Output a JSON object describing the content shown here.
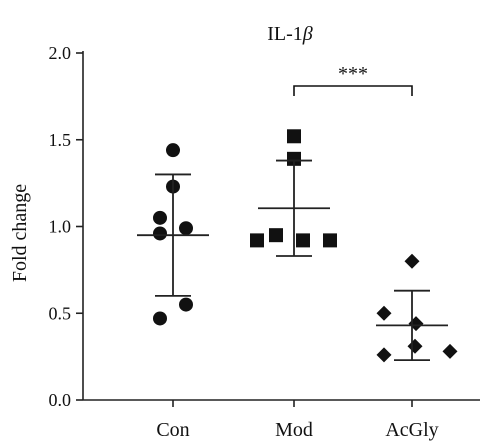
{
  "chart_data": {
    "type": "scatter",
    "title": "IL-1",
    "title_symbol": "β",
    "xlabel": "",
    "ylabel": "Fold change",
    "ylim": [
      0,
      2.0
    ],
    "y_ticks": [
      "0.0",
      "0.5",
      "1.0",
      "1.5",
      "2.0"
    ],
    "categories": [
      "Con",
      "Mod",
      "AcGly"
    ],
    "groups": [
      {
        "category": "Con",
        "marker": "circle",
        "points": [
          1.44,
          1.23,
          1.05,
          0.99,
          0.96,
          0.55,
          0.47
        ],
        "mean": 0.95,
        "sd_upper": 1.3,
        "sd_lower": 0.6
      },
      {
        "category": "Mod",
        "marker": "square",
        "points": [
          1.52,
          1.39,
          0.95,
          0.92,
          0.92,
          0.92
        ],
        "mean": 1.105,
        "sd_upper": 1.38,
        "sd_lower": 0.83
      },
      {
        "category": "AcGly",
        "marker": "diamond",
        "points": [
          0.8,
          0.5,
          0.44,
          0.31,
          0.28,
          0.26
        ],
        "mean": 0.43,
        "sd_upper": 0.63,
        "sd_lower": 0.23
      }
    ],
    "annotations": [
      {
        "text": "***",
        "from": "Mod",
        "to": "AcGly"
      }
    ],
    "grid": false,
    "legend": "none",
    "color": "#111111"
  }
}
